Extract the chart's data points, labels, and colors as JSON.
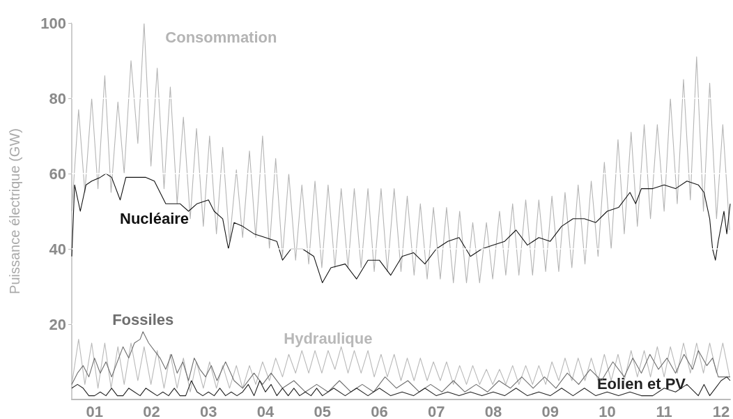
{
  "chart_data": {
    "type": "line",
    "ylabel": "Puissance électrique (GW)",
    "xlim": [
      0.6,
      12.16
    ],
    "ylim": [
      0,
      100
    ],
    "xticks": [
      {
        "value": 1,
        "label": "01"
      },
      {
        "value": 2,
        "label": "02"
      },
      {
        "value": 3,
        "label": "03"
      },
      {
        "value": 4,
        "label": "04"
      },
      {
        "value": 5,
        "label": "05"
      },
      {
        "value": 6,
        "label": "06"
      },
      {
        "value": 7,
        "label": "07"
      },
      {
        "value": 8,
        "label": "08"
      },
      {
        "value": 9,
        "label": "09"
      },
      {
        "value": 10,
        "label": "10"
      },
      {
        "value": 11,
        "label": "11"
      },
      {
        "value": 12,
        "label": "12"
      }
    ],
    "yticks": [
      20,
      40,
      60,
      80,
      100
    ],
    "grid": "y",
    "marker": "none",
    "line_style": "solid",
    "x": [
      0.6,
      0.72,
      0.83,
      0.95,
      1.06,
      1.18,
      1.29,
      1.41,
      1.52,
      1.64,
      1.76,
      1.87,
      1.99,
      2.1,
      2.22,
      2.33,
      2.45,
      2.56,
      2.68,
      2.79,
      2.91,
      3.02,
      3.14,
      3.25,
      3.37,
      3.49,
      3.6,
      3.72,
      3.83,
      3.95,
      4.07,
      4.18,
      4.3,
      4.41,
      4.53,
      4.64,
      4.76,
      4.87,
      4.99,
      5.1,
      5.22,
      5.33,
      5.45,
      5.56,
      5.68,
      5.8,
      5.91,
      6.03,
      6.14,
      6.26,
      6.38,
      6.49,
      6.61,
      6.72,
      6.84,
      6.95,
      7.07,
      7.18,
      7.3,
      7.41,
      7.53,
      7.64,
      7.76,
      7.88,
      7.99,
      8.11,
      8.22,
      8.34,
      8.45,
      8.57,
      8.69,
      8.8,
      8.92,
      9.03,
      9.15,
      9.26,
      9.38,
      9.49,
      9.61,
      9.72,
      9.84,
      9.95,
      10.07,
      10.19,
      10.3,
      10.42,
      10.53,
      10.65,
      10.76,
      10.88,
      11.0,
      11.11,
      11.23,
      11.34,
      11.46,
      11.57,
      11.69,
      11.8,
      11.92,
      12.03,
      12.15
    ],
    "series": [
      {
        "name": "Consommation",
        "color": "#b4b4b4",
        "values": [
          50,
          77,
          55,
          80,
          56,
          86,
          55,
          79,
          60,
          90,
          68,
          100,
          62,
          88,
          56,
          83,
          52,
          75,
          48,
          72,
          46,
          70,
          44,
          67,
          42,
          61,
          43,
          66,
          43,
          70,
          40,
          64,
          38,
          60,
          37,
          57,
          36,
          58,
          35,
          57,
          35,
          56,
          35,
          56,
          35,
          56,
          34,
          56,
          34,
          56,
          34,
          54,
          33,
          52,
          32,
          51,
          32,
          51,
          31,
          50,
          31,
          47,
          31,
          47,
          32,
          50,
          33,
          52,
          33,
          53,
          33,
          53,
          34,
          54,
          34,
          55,
          35,
          57,
          36,
          58,
          38,
          63,
          40,
          69,
          44,
          71,
          46,
          73,
          48,
          73,
          50,
          80,
          52,
          85,
          53,
          91,
          50,
          84,
          48,
          73,
          45
        ]
      },
      {
        "name": "Nucléaire",
        "color": "#111111",
        "x": [
          0.6,
          0.65,
          0.75,
          0.85,
          0.95,
          1.1,
          1.2,
          1.3,
          1.45,
          1.55,
          1.7,
          1.9,
          2.05,
          2.15,
          2.25,
          2.5,
          2.65,
          2.8,
          3.0,
          3.1,
          3.25,
          3.35,
          3.45,
          3.6,
          3.8,
          4.0,
          4.2,
          4.3,
          4.45,
          4.65,
          4.85,
          5.0,
          5.15,
          5.4,
          5.6,
          5.8,
          6.0,
          6.2,
          6.4,
          6.6,
          6.8,
          7.0,
          7.2,
          7.4,
          7.6,
          7.8,
          8.0,
          8.2,
          8.4,
          8.6,
          8.8,
          9.0,
          9.2,
          9.4,
          9.6,
          9.8,
          10.0,
          10.2,
          10.4,
          10.5,
          10.6,
          10.8,
          11.0,
          11.2,
          11.4,
          11.6,
          11.7,
          11.8,
          11.85,
          11.9,
          11.95,
          12.05,
          12.1,
          12.16
        ],
        "values": [
          38,
          57,
          50,
          57,
          58,
          59,
          60,
          59,
          53,
          59,
          59,
          59,
          58,
          55,
          52,
          52,
          50,
          52,
          53,
          50,
          48,
          40,
          47,
          46,
          44,
          43,
          42,
          37,
          40,
          40,
          38,
          31,
          35,
          36,
          32,
          37,
          37,
          33,
          38,
          39,
          36,
          40,
          42,
          43,
          38,
          40,
          41,
          42,
          45,
          41,
          43,
          42,
          46,
          48,
          48,
          47,
          50,
          51,
          55,
          52,
          56,
          56,
          57,
          56,
          58,
          57,
          55,
          48,
          40,
          37,
          42,
          50,
          44,
          52
        ]
      },
      {
        "name": "Hydraulique",
        "color": "#b8b8b8",
        "values": [
          4,
          16,
          4,
          15,
          3,
          15,
          3,
          14,
          4,
          15,
          5,
          14,
          4,
          13,
          3,
          12,
          3,
          11,
          2,
          10,
          3,
          10,
          3,
          9,
          3,
          9,
          3,
          9,
          4,
          10,
          5,
          11,
          6,
          12,
          7,
          13,
          7,
          13,
          7,
          13,
          8,
          14,
          7,
          13,
          7,
          13,
          6,
          12,
          6,
          12,
          5,
          11,
          5,
          11,
          5,
          10,
          5,
          10,
          4,
          9,
          4,
          9,
          4,
          8,
          4,
          8,
          4,
          9,
          4,
          9,
          4,
          9,
          4,
          10,
          5,
          11,
          5,
          11,
          5,
          11,
          5,
          12,
          5,
          12,
          5,
          13,
          6,
          13,
          6,
          14,
          6,
          14,
          7,
          15,
          7,
          15,
          7,
          15,
          7,
          15,
          6
        ]
      },
      {
        "name": "Fossiles",
        "color": "#6e6e6e",
        "x": [
          0.6,
          0.7,
          0.8,
          0.9,
          1.0,
          1.1,
          1.2,
          1.3,
          1.4,
          1.5,
          1.6,
          1.7,
          1.8,
          1.85,
          1.95,
          2.05,
          2.15,
          2.25,
          2.35,
          2.45,
          2.55,
          2.65,
          2.75,
          2.85,
          2.95,
          3.05,
          3.15,
          3.3,
          3.45,
          3.6,
          3.8,
          3.95,
          4.1,
          4.3,
          4.5,
          4.7,
          4.9,
          5.1,
          5.3,
          5.5,
          5.7,
          5.9,
          6.1,
          6.3,
          6.5,
          6.7,
          6.9,
          7.1,
          7.3,
          7.5,
          7.7,
          7.9,
          8.1,
          8.3,
          8.5,
          8.7,
          8.9,
          9.1,
          9.3,
          9.5,
          9.7,
          9.9,
          10.1,
          10.3,
          10.45,
          10.6,
          10.75,
          10.9,
          11.05,
          11.2,
          11.35,
          11.5,
          11.6,
          11.75,
          11.85,
          11.95,
          12.05,
          12.16
        ],
        "values": [
          4,
          7,
          9,
          6,
          11,
          7,
          10,
          6,
          10,
          14,
          11,
          15,
          16,
          18,
          15,
          13,
          11,
          8,
          12,
          7,
          10,
          5,
          11,
          8,
          6,
          9,
          5,
          10,
          5,
          3,
          7,
          4,
          7,
          3,
          5,
          2,
          4,
          2,
          5,
          2,
          4,
          2,
          6,
          3,
          5,
          2,
          4,
          2,
          5,
          2,
          4,
          2,
          5,
          3,
          6,
          3,
          6,
          3,
          7,
          4,
          8,
          5,
          10,
          6,
          11,
          7,
          12,
          8,
          11,
          7,
          12,
          8,
          13,
          9,
          11,
          6,
          6,
          6
        ]
      },
      {
        "name": "Eolien et PV",
        "color": "#222222",
        "x": [
          0.6,
          0.7,
          0.8,
          0.9,
          1.0,
          1.1,
          1.2,
          1.3,
          1.4,
          1.5,
          1.6,
          1.7,
          1.8,
          1.9,
          2.0,
          2.1,
          2.2,
          2.3,
          2.4,
          2.5,
          2.6,
          2.7,
          2.8,
          2.9,
          3.0,
          3.1,
          3.2,
          3.3,
          3.4,
          3.5,
          3.6,
          3.7,
          3.8,
          3.9,
          4.0,
          4.1,
          4.2,
          4.3,
          4.4,
          4.5,
          4.6,
          4.7,
          4.8,
          4.9,
          5.0,
          5.2,
          5.4,
          5.6,
          5.8,
          6.0,
          6.2,
          6.4,
          6.6,
          6.8,
          7.0,
          7.2,
          7.4,
          7.6,
          7.8,
          8.0,
          8.2,
          8.4,
          8.6,
          8.8,
          9.0,
          9.2,
          9.4,
          9.6,
          9.8,
          10.0,
          10.2,
          10.4,
          10.6,
          10.8,
          11.0,
          11.2,
          11.4,
          11.6,
          11.7,
          11.8,
          11.9,
          12.0,
          12.1,
          12.16
        ],
        "values": [
          3,
          4,
          3,
          1,
          1,
          2,
          1,
          3,
          1,
          1,
          3,
          2,
          1,
          3,
          2,
          1,
          2,
          1,
          3,
          1,
          1,
          5,
          2,
          1,
          2,
          1,
          3,
          1,
          2,
          1,
          2,
          4,
          1,
          5,
          2,
          4,
          1,
          3,
          1,
          3,
          1,
          2,
          1,
          3,
          1,
          3,
          1,
          3,
          1,
          3,
          1,
          2,
          1,
          3,
          1,
          2,
          1,
          2,
          1,
          2,
          1,
          3,
          1,
          2,
          1,
          3,
          1,
          3,
          1,
          2,
          1,
          2,
          1,
          1,
          3,
          2,
          4,
          1,
          4,
          1,
          3,
          5,
          6,
          5
        ]
      }
    ]
  }
}
